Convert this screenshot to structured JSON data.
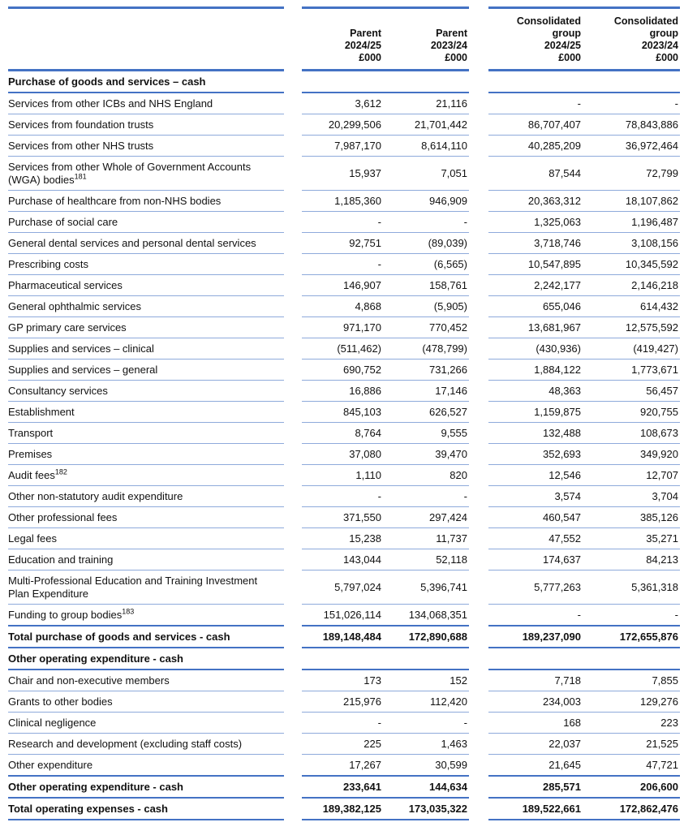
{
  "colors": {
    "rule_strong": "#4472c4",
    "rule_light": "#8eaadb",
    "text": "#111111"
  },
  "table": {
    "header": {
      "label": "",
      "columns": [
        "Parent\n2024/25\n£000",
        "Parent\n2023/24\n£000",
        "Consolidated\ngroup\n2024/25\n£000",
        "Consolidated\ngroup\n2023/24\n£000"
      ]
    },
    "rows": [
      {
        "type": "section",
        "label": "Purchase of goods and services – cash",
        "values": [
          "",
          "",
          "",
          ""
        ]
      },
      {
        "type": "data",
        "label": "Services from other ICBs and NHS England",
        "values": [
          "3,612",
          "21,116",
          "-",
          "-"
        ]
      },
      {
        "type": "data",
        "label": "Services from foundation trusts",
        "values": [
          "20,299,506",
          "21,701,442",
          "86,707,407",
          "78,843,886"
        ]
      },
      {
        "type": "data",
        "label": "Services from other NHS trusts",
        "values": [
          "7,987,170",
          "8,614,110",
          "40,285,209",
          "36,972,464"
        ]
      },
      {
        "type": "data",
        "label": "Services from other Whole of Government Accounts (WGA) bodies",
        "sup": "181",
        "values": [
          "15,937",
          "7,051",
          "87,544",
          "72,799"
        ]
      },
      {
        "type": "data",
        "label": "Purchase of healthcare from non-NHS bodies",
        "values": [
          "1,185,360",
          "946,909",
          "20,363,312",
          "18,107,862"
        ]
      },
      {
        "type": "data",
        "label": "Purchase of social care",
        "values": [
          "-",
          "-",
          "1,325,063",
          "1,196,487"
        ]
      },
      {
        "type": "data",
        "label": "General dental services and personal dental services",
        "values": [
          "92,751",
          "(89,039)",
          "3,718,746",
          "3,108,156"
        ]
      },
      {
        "type": "data",
        "label": "Prescribing costs",
        "values": [
          "-",
          "(6,565)",
          "10,547,895",
          "10,345,592"
        ]
      },
      {
        "type": "data",
        "label": "Pharmaceutical services",
        "values": [
          "146,907",
          "158,761",
          "2,242,177",
          "2,146,218"
        ]
      },
      {
        "type": "data",
        "label": "General ophthalmic services",
        "values": [
          "4,868",
          "(5,905)",
          "655,046",
          "614,432"
        ]
      },
      {
        "type": "data",
        "label": "GP primary care services",
        "values": [
          "971,170",
          "770,452",
          "13,681,967",
          "12,575,592"
        ]
      },
      {
        "type": "data",
        "label": "Supplies and services – clinical",
        "values": [
          "(511,462)",
          "(478,799)",
          "(430,936)",
          "(419,427)"
        ]
      },
      {
        "type": "data",
        "label": "Supplies and services – general",
        "values": [
          "690,752",
          "731,266",
          "1,884,122",
          "1,773,671"
        ]
      },
      {
        "type": "data",
        "label": "Consultancy services",
        "values": [
          "16,886",
          "17,146",
          "48,363",
          "56,457"
        ]
      },
      {
        "type": "data",
        "label": "Establishment",
        "values": [
          "845,103",
          "626,527",
          "1,159,875",
          "920,755"
        ]
      },
      {
        "type": "data",
        "label": "Transport",
        "values": [
          "8,764",
          "9,555",
          "132,488",
          "108,673"
        ]
      },
      {
        "type": "data",
        "label": "Premises",
        "values": [
          "37,080",
          "39,470",
          "352,693",
          "349,920"
        ]
      },
      {
        "type": "data",
        "label": "Audit fees",
        "sup": "182",
        "values": [
          "1,110",
          "820",
          "12,546",
          "12,707"
        ]
      },
      {
        "type": "data",
        "label": "Other non-statutory audit expenditure",
        "values": [
          "-",
          "-",
          "3,574",
          "3,704"
        ]
      },
      {
        "type": "data",
        "label": "Other professional fees",
        "values": [
          "371,550",
          "297,424",
          "460,547",
          "385,126"
        ]
      },
      {
        "type": "data",
        "label": "Legal fees",
        "values": [
          "15,238",
          "11,737",
          "47,552",
          "35,271"
        ]
      },
      {
        "type": "data",
        "label": "Education and training",
        "values": [
          "143,044",
          "52,118",
          "174,637",
          "84,213"
        ]
      },
      {
        "type": "data",
        "label": "Multi-Professional Education and Training Investment Plan Expenditure",
        "values": [
          "5,797,024",
          "5,396,741",
          "5,777,263",
          "5,361,318"
        ]
      },
      {
        "type": "data",
        "label": "Funding to group bodies",
        "sup": "183",
        "values": [
          "151,026,114",
          "134,068,351",
          "-",
          "-"
        ]
      },
      {
        "type": "total",
        "label": "Total purchase of goods and services - cash",
        "values": [
          "189,148,484",
          "172,890,688",
          "189,237,090",
          "172,655,876"
        ]
      },
      {
        "type": "section",
        "label": "Other operating expenditure - cash",
        "values": [
          "",
          "",
          "",
          ""
        ]
      },
      {
        "type": "data",
        "label": "Chair and non-executive members",
        "values": [
          "173",
          "152",
          "7,718",
          "7,855"
        ]
      },
      {
        "type": "data",
        "label": "Grants to other bodies",
        "values": [
          "215,976",
          "112,420",
          "234,003",
          "129,276"
        ]
      },
      {
        "type": "data",
        "label": "Clinical negligence",
        "values": [
          "-",
          "-",
          "168",
          "223"
        ]
      },
      {
        "type": "data",
        "label": "Research and development (excluding staff costs)",
        "values": [
          "225",
          "1,463",
          "22,037",
          "21,525"
        ]
      },
      {
        "type": "data",
        "label": "Other expenditure",
        "values": [
          "17,267",
          "30,599",
          "21,645",
          "47,721"
        ]
      },
      {
        "type": "total",
        "label": "Other operating expenditure - cash",
        "values": [
          "233,641",
          "144,634",
          "285,571",
          "206,600"
        ]
      },
      {
        "type": "total",
        "label": "Total operating expenses - cash",
        "values": [
          "189,382,125",
          "173,035,322",
          "189,522,661",
          "172,862,476"
        ]
      }
    ]
  }
}
